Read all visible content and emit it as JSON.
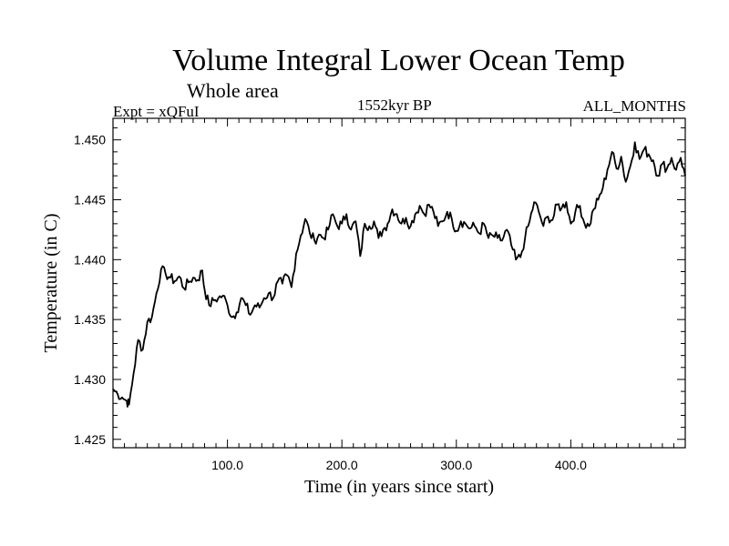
{
  "header": {
    "title": "Volume Integral Lower Ocean Temp",
    "subtitle": "Whole area",
    "experiment": "Expt = xQFuI",
    "period": "1552kyr BP",
    "months": "ALL_MONTHS"
  },
  "chart_data": {
    "type": "line",
    "title": "Volume Integral Lower Ocean Temp",
    "subtitle": "Whole area",
    "xlabel": "Time (in years since start)",
    "ylabel": "Temperature (in C)",
    "xlim": [
      0,
      500
    ],
    "ylim": [
      1.4243,
      1.4518
    ],
    "x_ticks": [
      100,
      200,
      300,
      400
    ],
    "x_tick_labels": [
      "100.0",
      "200.0",
      "300.0",
      "400.0"
    ],
    "y_ticks": [
      1.425,
      1.43,
      1.435,
      1.44,
      1.445,
      1.45
    ],
    "y_tick_labels": [
      "1.425",
      "1.430",
      "1.435",
      "1.440",
      "1.445",
      "1.450"
    ],
    "grid": false,
    "line_color": "#000000",
    "series": [
      {
        "name": "Volume Integral Lower Ocean Temp",
        "x": [
          0,
          4,
          8,
          12,
          14,
          18,
          22,
          26,
          30,
          34,
          38,
          42,
          46,
          50,
          54,
          58,
          62,
          66,
          70,
          74,
          78,
          80,
          84,
          88,
          92,
          96,
          100,
          104,
          108,
          112,
          116,
          120,
          124,
          128,
          132,
          136,
          140,
          144,
          148,
          152,
          156,
          160,
          164,
          168,
          172,
          176,
          180,
          184,
          188,
          192,
          196,
          200,
          204,
          208,
          212,
          216,
          220,
          224,
          228,
          232,
          236,
          240,
          244,
          248,
          252,
          256,
          260,
          264,
          268,
          272,
          276,
          280,
          284,
          288,
          292,
          296,
          300,
          304,
          308,
          312,
          316,
          320,
          324,
          328,
          332,
          336,
          340,
          344,
          348,
          352,
          356,
          360,
          364,
          368,
          372,
          376,
          380,
          384,
          388,
          392,
          396,
          400,
          404,
          408,
          412,
          416,
          420,
          424,
          428,
          432,
          436,
          440,
          444,
          448,
          452,
          456,
          460,
          464,
          468,
          472,
          476,
          480,
          484,
          488,
          492,
          496,
          500
        ],
        "values": [
          1.4292,
          1.4288,
          1.4285,
          1.4282,
          1.4279,
          1.4305,
          1.4333,
          1.4325,
          1.4348,
          1.4352,
          1.4372,
          1.4392,
          1.4388,
          1.4385,
          1.4382,
          1.4386,
          1.4376,
          1.4381,
          1.4385,
          1.4383,
          1.4391,
          1.4375,
          1.4362,
          1.4366,
          1.4368,
          1.437,
          1.4362,
          1.4352,
          1.4356,
          1.4368,
          1.4362,
          1.4354,
          1.4362,
          1.436,
          1.4368,
          1.4372,
          1.4368,
          1.4382,
          1.438,
          1.4387,
          1.4377,
          1.4405,
          1.442,
          1.4434,
          1.4422,
          1.4416,
          1.4421,
          1.4418,
          1.4425,
          1.4438,
          1.4428,
          1.443,
          1.4438,
          1.4425,
          1.4432,
          1.4403,
          1.443,
          1.4428,
          1.4432,
          1.4418,
          1.4425,
          1.443,
          1.4442,
          1.4438,
          1.443,
          1.4435,
          1.4428,
          1.4438,
          1.4445,
          1.4438,
          1.4446,
          1.444,
          1.4428,
          1.4432,
          1.444,
          1.4434,
          1.4424,
          1.4432,
          1.443,
          1.4426,
          1.4428,
          1.4422,
          1.443,
          1.4418,
          1.442,
          1.4418,
          1.4416,
          1.4425,
          1.4412,
          1.44,
          1.4402,
          1.4418,
          1.4432,
          1.4448,
          1.444,
          1.4428,
          1.4436,
          1.4433,
          1.4446,
          1.4443,
          1.4448,
          1.443,
          1.444,
          1.4445,
          1.443,
          1.4428,
          1.4442,
          1.445,
          1.446,
          1.4475,
          1.449,
          1.4476,
          1.4486,
          1.4465,
          1.4478,
          1.4498,
          1.4484,
          1.4492,
          1.4488,
          1.4483,
          1.447,
          1.448,
          1.4476,
          1.4485,
          1.4475,
          1.4485,
          1.447
        ]
      }
    ]
  }
}
